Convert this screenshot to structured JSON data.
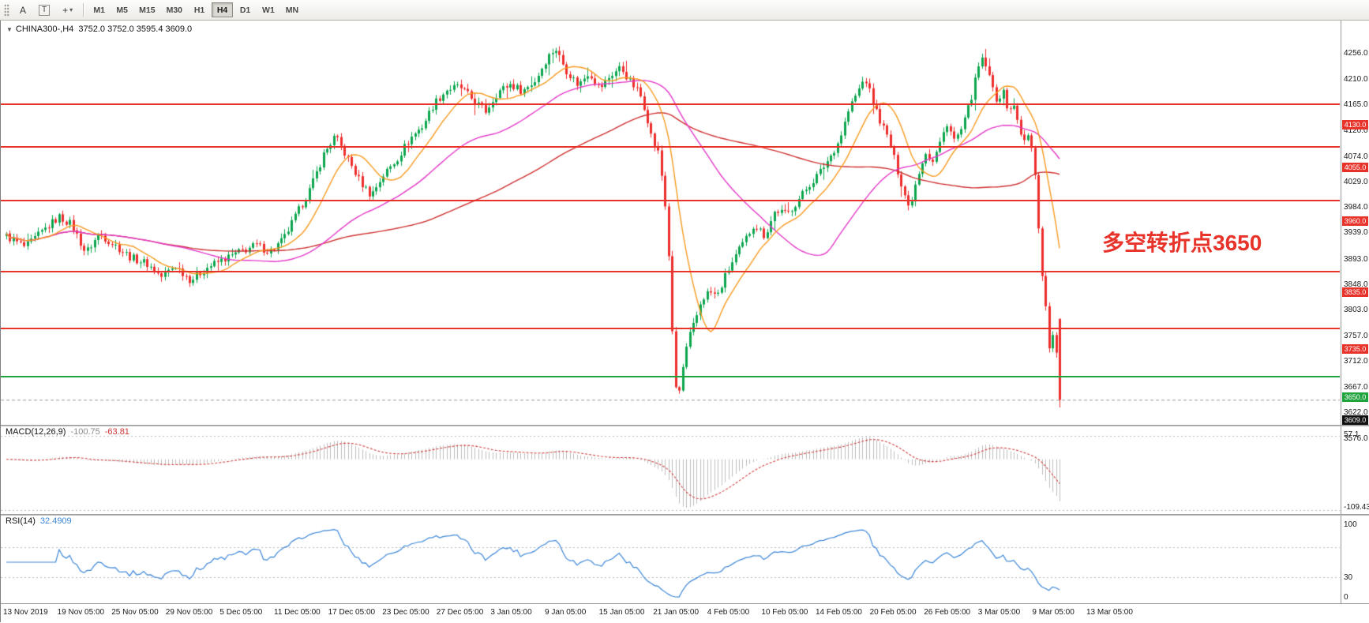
{
  "header": {
    "symbol_tf": "CHINA300-,H4",
    "ohlc": "3752.0 3752.0 3595.4 3609.0"
  },
  "toolbar": {
    "tools": [
      {
        "label": "A",
        "boxed": false,
        "arrow": false,
        "name": "text-label-tool"
      },
      {
        "label": "T",
        "boxed": true,
        "arrow": false,
        "name": "text-tool"
      },
      {
        "label": "+",
        "boxed": false,
        "arrow": true,
        "name": "drawing-tools-dropdown"
      }
    ],
    "timeframes": [
      {
        "label": "M1",
        "active": false
      },
      {
        "label": "M5",
        "active": false
      },
      {
        "label": "M15",
        "active": false
      },
      {
        "label": "M30",
        "active": false
      },
      {
        "label": "H1",
        "active": false
      },
      {
        "label": "H4",
        "active": true
      },
      {
        "label": "D1",
        "active": false
      },
      {
        "label": "W1",
        "active": false
      },
      {
        "label": "MN",
        "active": false
      }
    ]
  },
  "chart_data": {
    "type": "candlestick",
    "symbol": "CHINA300-",
    "timeframe": "H4",
    "price_range": {
      "min": 3576.0,
      "max": 4256.0
    },
    "y_axis_labels": [
      "4256.0",
      "4210.0",
      "4165.0",
      "4120.0",
      "4074.0",
      "4029.0",
      "3984.0",
      "3939.0",
      "3893.0",
      "3848.0",
      "3803.0",
      "3757.0",
      "3712.0",
      "3667.0",
      "3622.0",
      "3576.0"
    ],
    "candle_count": 300,
    "last_candle": [
      3752.0,
      3752.0,
      3595.4,
      3609.0
    ],
    "anchors": [
      [
        0.0,
        3898
      ],
      [
        0.018,
        3878
      ],
      [
        0.035,
        3908
      ],
      [
        0.05,
        3932
      ],
      [
        0.062,
        3918
      ],
      [
        0.075,
        3868
      ],
      [
        0.088,
        3902
      ],
      [
        0.103,
        3882
      ],
      [
        0.118,
        3860
      ],
      [
        0.133,
        3850
      ],
      [
        0.147,
        3826
      ],
      [
        0.16,
        3846
      ],
      [
        0.175,
        3820
      ],
      [
        0.19,
        3842
      ],
      [
        0.205,
        3856
      ],
      [
        0.222,
        3870
      ],
      [
        0.237,
        3882
      ],
      [
        0.25,
        3870
      ],
      [
        0.263,
        3892
      ],
      [
        0.276,
        3938
      ],
      [
        0.289,
        3984
      ],
      [
        0.301,
        4042
      ],
      [
        0.312,
        4074
      ],
      [
        0.323,
        4038
      ],
      [
        0.335,
        3996
      ],
      [
        0.346,
        3970
      ],
      [
        0.358,
        4006
      ],
      [
        0.37,
        4032
      ],
      [
        0.383,
        4070
      ],
      [
        0.395,
        4092
      ],
      [
        0.406,
        4132
      ],
      [
        0.418,
        4156
      ],
      [
        0.43,
        4162
      ],
      [
        0.443,
        4138
      ],
      [
        0.455,
        4118
      ],
      [
        0.466,
        4152
      ],
      [
        0.478,
        4166
      ],
      [
        0.49,
        4154
      ],
      [
        0.502,
        4172
      ],
      [
        0.513,
        4212
      ],
      [
        0.521,
        4230
      ],
      [
        0.531,
        4192
      ],
      [
        0.543,
        4164
      ],
      [
        0.553,
        4188
      ],
      [
        0.563,
        4158
      ],
      [
        0.573,
        4180
      ],
      [
        0.583,
        4196
      ],
      [
        0.593,
        4168
      ],
      [
        0.601,
        4150
      ],
      [
        0.607,
        4118
      ],
      [
        0.613,
        4068
      ],
      [
        0.619,
        4044
      ],
      [
        0.624,
        3980
      ],
      [
        0.628,
        3900
      ],
      [
        0.631,
        3762
      ],
      [
        0.634,
        3660
      ],
      [
        0.637,
        3600
      ],
      [
        0.64,
        3640
      ],
      [
        0.644,
        3688
      ],
      [
        0.649,
        3724
      ],
      [
        0.654,
        3748
      ],
      [
        0.66,
        3786
      ],
      [
        0.667,
        3800
      ],
      [
        0.675,
        3792
      ],
      [
        0.683,
        3830
      ],
      [
        0.692,
        3862
      ],
      [
        0.7,
        3886
      ],
      [
        0.71,
        3920
      ],
      [
        0.72,
        3898
      ],
      [
        0.73,
        3944
      ],
      [
        0.741,
        3936
      ],
      [
        0.752,
        3962
      ],
      [
        0.762,
        3988
      ],
      [
        0.772,
        4010
      ],
      [
        0.782,
        4038
      ],
      [
        0.791,
        4068
      ],
      [
        0.8,
        4122
      ],
      [
        0.808,
        4152
      ],
      [
        0.815,
        4178
      ],
      [
        0.823,
        4132
      ],
      [
        0.83,
        4100
      ],
      [
        0.838,
        4066
      ],
      [
        0.845,
        4020
      ],
      [
        0.851,
        3982
      ],
      [
        0.857,
        3946
      ],
      [
        0.865,
        4006
      ],
      [
        0.873,
        4048
      ],
      [
        0.879,
        4026
      ],
      [
        0.886,
        4060
      ],
      [
        0.893,
        4098
      ],
      [
        0.9,
        4066
      ],
      [
        0.908,
        4090
      ],
      [
        0.916,
        4142
      ],
      [
        0.923,
        4196
      ],
      [
        0.928,
        4212
      ],
      [
        0.934,
        4170
      ],
      [
        0.94,
        4140
      ],
      [
        0.946,
        4152
      ],
      [
        0.951,
        4122
      ],
      [
        0.956,
        4128
      ],
      [
        0.961,
        4096
      ],
      [
        0.966,
        4062
      ],
      [
        0.97,
        4074
      ],
      [
        0.975,
        4042
      ],
      [
        0.979,
        3942
      ],
      [
        0.982,
        3856
      ],
      [
        0.985,
        3800
      ],
      [
        0.988,
        3748
      ],
      [
        0.99,
        3700
      ],
      [
        0.992,
        3752
      ],
      [
        0.994,
        3716
      ],
      [
        0.996,
        3668
      ],
      [
        0.998,
        3726
      ],
      [
        1.0,
        3620
      ]
    ],
    "h_lines": [
      {
        "price": 4130.0,
        "label": "4130.0",
        "color": "#e8332a",
        "kind": "resistance"
      },
      {
        "price": 4055.0,
        "label": "4055.0",
        "color": "#e8332a",
        "kind": "resistance"
      },
      {
        "price": 3960.0,
        "label": "3960.0",
        "color": "#e8332a",
        "kind": "resistance"
      },
      {
        "price": 3835.0,
        "label": "3835.0",
        "color": "#e8332a",
        "kind": "support"
      },
      {
        "price": 3735.0,
        "label": "3735.0",
        "color": "#e8332a",
        "kind": "support"
      },
      {
        "price": 3650.0,
        "label": "3650.0",
        "color": "#1fa33c",
        "kind": "support"
      }
    ],
    "current_price": {
      "value": 3609.0,
      "label": "3609.0",
      "badge_color": "#111111"
    },
    "annotation": {
      "text": "多空转折点3650",
      "color": "#e8332a"
    },
    "colors": {
      "up": "#0ba64e",
      "down": "#ee2d2d",
      "ma_fast": "#f79a1f",
      "ma_mid": "#e338c8",
      "ma_slow": "#cf3030",
      "macd_hist": "#bdbdbd",
      "macd_signal": "#d04040",
      "rsi_line": "#3c86d8",
      "level_dash": "#b8b8b8",
      "last_price_dash": "#9a9a9a"
    }
  },
  "indicators": {
    "macd": {
      "name": "MACD(12,26,9)",
      "value1": "-100.75",
      "value2": "-63.81",
      "scale_max": "57.1",
      "scale_min": "-109.43",
      "params": {
        "fast": 12,
        "slow": 26,
        "signal": 9
      }
    },
    "rsi": {
      "name": "RSI(14)",
      "value": "32.4909",
      "period": 14,
      "scale_labels": [
        "100",
        "30",
        "0"
      ],
      "levels": [
        70,
        30
      ]
    }
  },
  "time_axis": {
    "labels": [
      "13 Nov 2019",
      "19 Nov 05:00",
      "25 Nov 05:00",
      "29 Nov 05:00",
      "5 Dec 05:00",
      "11 Dec 05:00",
      "17 Dec 05:00",
      "23 Dec 05:00",
      "27 Dec 05:00",
      "3 Jan 05:00",
      "9 Jan 05:00",
      "15 Jan 05:00",
      "21 Jan 05:00",
      "4 Feb 05:00",
      "10 Feb 05:00",
      "14 Feb 05:00",
      "20 Feb 05:00",
      "26 Feb 05:00",
      "3 Mar 05:00",
      "9 Mar 05:00",
      "13 Mar 05:00"
    ]
  }
}
